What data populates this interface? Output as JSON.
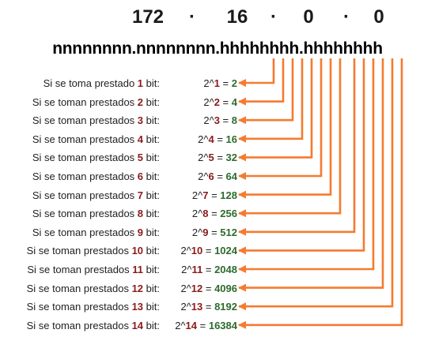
{
  "header": {
    "octets": [
      "172",
      "16",
      "0",
      "0"
    ],
    "separator": "·",
    "bit_pattern": "nnnnnnnn.nnnnnnnn.hhhhhhhh.hhhhhhhh"
  },
  "colors": {
    "arrow": "#f47b30",
    "bit_count": "#8b1a1a",
    "result": "#2e6b2e"
  },
  "rows": [
    {
      "prefix": "Si se toma prestado ",
      "bits": "1",
      "suffix": " bit:",
      "base": "2^",
      "exp": "1",
      "eq": " = ",
      "result": "2"
    },
    {
      "prefix": "Si se toman prestados ",
      "bits": "2",
      "suffix": " bit:",
      "base": "2^",
      "exp": "2",
      "eq": " = ",
      "result": "4"
    },
    {
      "prefix": "Si se toman prestados ",
      "bits": "3",
      "suffix": " bit:",
      "base": "2^",
      "exp": "3",
      "eq": " = ",
      "result": "8"
    },
    {
      "prefix": "Si se toman prestados ",
      "bits": "4",
      "suffix": " bit:",
      "base": "2^",
      "exp": "4",
      "eq": " = ",
      "result": "16"
    },
    {
      "prefix": "Si se toman prestados ",
      "bits": "5",
      "suffix": " bit:",
      "base": "2^",
      "exp": "5",
      "eq": " = ",
      "result": "32"
    },
    {
      "prefix": "Si se toman prestados ",
      "bits": "6",
      "suffix": " bit:",
      "base": "2^",
      "exp": "6",
      "eq": " = ",
      "result": "64"
    },
    {
      "prefix": "Si se toman prestados ",
      "bits": "7",
      "suffix": " bit:",
      "base": "2^",
      "exp": "7",
      "eq": " = ",
      "result": "128"
    },
    {
      "prefix": "Si se toman prestados ",
      "bits": "8",
      "suffix": " bit:",
      "base": "2^",
      "exp": "8",
      "eq": " = ",
      "result": "256"
    },
    {
      "prefix": "Si se toman prestados ",
      "bits": "9",
      "suffix": " bit:",
      "base": "2^",
      "exp": "9",
      "eq": " = ",
      "result": "512"
    },
    {
      "prefix": "Si se toman prestados ",
      "bits": "10",
      "suffix": " bit:",
      "base": "2^",
      "exp": "10",
      "eq": " = ",
      "result": "1024"
    },
    {
      "prefix": "Si se toman prestados ",
      "bits": "11",
      "suffix": " bit:",
      "base": "2^",
      "exp": "11",
      "eq": " = ",
      "result": "2048"
    },
    {
      "prefix": "Si se toman prestados ",
      "bits": "12",
      "suffix": " bit:",
      "base": "2^",
      "exp": "12",
      "eq": " = ",
      "result": "4096"
    },
    {
      "prefix": "Si se toman prestados ",
      "bits": "13",
      "suffix": " bit:",
      "base": "2^",
      "exp": "13",
      "eq": " = ",
      "result": "8192"
    },
    {
      "prefix": "Si se toman prestados ",
      "bits": "14",
      "suffix": " bit:",
      "base": "2^",
      "exp": "14",
      "eq": " = ",
      "result": "16384"
    }
  ]
}
